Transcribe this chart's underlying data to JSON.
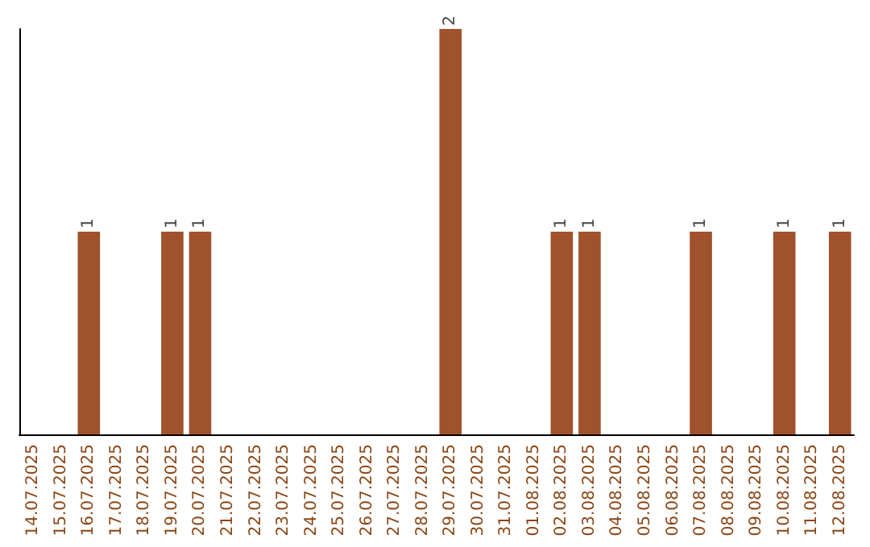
{
  "chart_data": {
    "type": "bar",
    "categories": [
      "14.07.2025",
      "15.07.2025",
      "16.07.2025",
      "17.07.2025",
      "18.07.2025",
      "19.07.2025",
      "20.07.2025",
      "21.07.2025",
      "22.07.2025",
      "23.07.2025",
      "24.07.2025",
      "25.07.2025",
      "26.07.2025",
      "27.07.2025",
      "28.07.2025",
      "29.07.2025",
      "30.07.2025",
      "31.07.2025",
      "01.08.2025",
      "02.08.2025",
      "03.08.2025",
      "04.08.2025",
      "05.08.2025",
      "06.08.2025",
      "07.08.2025",
      "08.08.2025",
      "09.08.2025",
      "10.08.2025",
      "11.08.2025",
      "12.08.2025"
    ],
    "values": [
      0,
      0,
      1,
      0,
      0,
      1,
      1,
      0,
      0,
      0,
      0,
      0,
      0,
      0,
      0,
      2,
      0,
      0,
      0,
      1,
      1,
      0,
      0,
      0,
      1,
      0,
      0,
      1,
      0,
      1
    ],
    "value_labels": [
      null,
      null,
      "1",
      null,
      null,
      "1",
      "1",
      null,
      null,
      null,
      null,
      null,
      null,
      null,
      null,
      "2",
      null,
      null,
      null,
      "1",
      "1",
      null,
      null,
      null,
      "1",
      null,
      null,
      "1",
      null,
      "1"
    ],
    "color": "#a0522d"
  }
}
